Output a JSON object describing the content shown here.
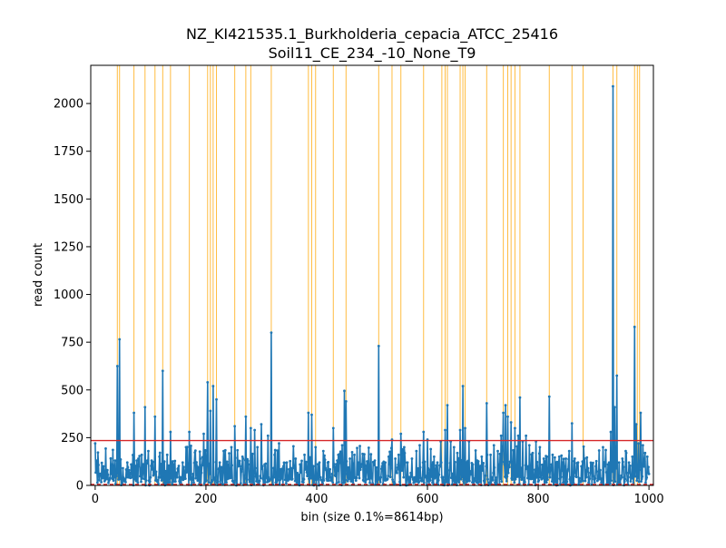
{
  "chart_data": {
    "type": "line",
    "title": "NZ_KI421535.1_Burkholderia_cepacia_ATCC_25416",
    "subtitle": "Soil11_CE_234_-10_None_T9",
    "xlabel": "bin (size 0.1%=8614bp)",
    "ylabel": "read count",
    "xlim": [
      -8,
      1008
    ],
    "ylim": [
      0,
      2200
    ],
    "x_ticks": [
      0,
      200,
      400,
      600,
      800,
      1000
    ],
    "y_ticks": [
      0,
      250,
      500,
      750,
      1000,
      1250,
      1500,
      1750,
      2000
    ],
    "grid": false,
    "colors": {
      "series": "#1f77b4",
      "threshold": "#d62728",
      "marker_lines": "#ffa500"
    },
    "threshold": 235,
    "lower_threshold": 5,
    "marker_lines_x": [
      40,
      44,
      70,
      90,
      108,
      122,
      136,
      170,
      203,
      208,
      213,
      219,
      252,
      272,
      281,
      318,
      385,
      391,
      398,
      430,
      453,
      512,
      536,
      552,
      593,
      626,
      632,
      636,
      659,
      664,
      668,
      707,
      737,
      745,
      751,
      758,
      767,
      820,
      861,
      881,
      935,
      942,
      974,
      979,
      983
    ],
    "series": [
      {
        "name": "",
        "peaks": [
          [
            0,
            220
          ],
          [
            8,
            60
          ],
          [
            15,
            100
          ],
          [
            22,
            80
          ],
          [
            30,
            110
          ],
          [
            36,
            130
          ],
          [
            40,
            625
          ],
          [
            44,
            765
          ],
          [
            50,
            90
          ],
          [
            58,
            120
          ],
          [
            65,
            110
          ],
          [
            70,
            380
          ],
          [
            78,
            140
          ],
          [
            84,
            160
          ],
          [
            90,
            410
          ],
          [
            96,
            180
          ],
          [
            102,
            130
          ],
          [
            108,
            360
          ],
          [
            116,
            150
          ],
          [
            122,
            600
          ],
          [
            130,
            160
          ],
          [
            136,
            280
          ],
          [
            143,
            100
          ],
          [
            150,
            90
          ],
          [
            158,
            120
          ],
          [
            164,
            200
          ],
          [
            170,
            280
          ],
          [
            177,
            60
          ],
          [
            184,
            100
          ],
          [
            190,
            140
          ],
          [
            196,
            270
          ],
          [
            203,
            540
          ],
          [
            208,
            390
          ],
          [
            213,
            520
          ],
          [
            219,
            450
          ],
          [
            225,
            120
          ],
          [
            232,
            180
          ],
          [
            240,
            110
          ],
          [
            246,
            200
          ],
          [
            252,
            310
          ],
          [
            258,
            100
          ],
          [
            266,
            150
          ],
          [
            272,
            360
          ],
          [
            281,
            300
          ],
          [
            288,
            290
          ],
          [
            293,
            200
          ],
          [
            300,
            320
          ],
          [
            306,
            110
          ],
          [
            312,
            260
          ],
          [
            318,
            800
          ],
          [
            324,
            160
          ],
          [
            332,
            220
          ],
          [
            340,
            100
          ],
          [
            346,
            120
          ],
          [
            354,
            90
          ],
          [
            362,
            140
          ],
          [
            370,
            110
          ],
          [
            378,
            160
          ],
          [
            385,
            380
          ],
          [
            391,
            370
          ],
          [
            398,
            200
          ],
          [
            405,
            120
          ],
          [
            412,
            180
          ],
          [
            420,
            120
          ],
          [
            430,
            300
          ],
          [
            437,
            130
          ],
          [
            444,
            120
          ],
          [
            450,
            495
          ],
          [
            453,
            440
          ],
          [
            460,
            140
          ],
          [
            468,
            160
          ],
          [
            475,
            120
          ],
          [
            482,
            110
          ],
          [
            490,
            100
          ],
          [
            497,
            90
          ],
          [
            505,
            130
          ],
          [
            512,
            730
          ],
          [
            518,
            100
          ],
          [
            524,
            120
          ],
          [
            530,
            150
          ],
          [
            536,
            240
          ],
          [
            542,
            140
          ],
          [
            548,
            160
          ],
          [
            552,
            270
          ],
          [
            558,
            200
          ],
          [
            564,
            120
          ],
          [
            572,
            140
          ],
          [
            580,
            180
          ],
          [
            586,
            210
          ],
          [
            593,
            280
          ],
          [
            600,
            240
          ],
          [
            606,
            190
          ],
          [
            612,
            150
          ],
          [
            618,
            120
          ],
          [
            624,
            230
          ],
          [
            632,
            290
          ],
          [
            636,
            420
          ],
          [
            642,
            230
          ],
          [
            648,
            200
          ],
          [
            654,
            170
          ],
          [
            659,
            290
          ],
          [
            664,
            520
          ],
          [
            668,
            300
          ],
          [
            675,
            230
          ],
          [
            682,
            110
          ],
          [
            690,
            130
          ],
          [
            698,
            150
          ],
          [
            707,
            430
          ],
          [
            714,
            160
          ],
          [
            720,
            210
          ],
          [
            727,
            180
          ],
          [
            733,
            260
          ],
          [
            737,
            380
          ],
          [
            741,
            420
          ],
          [
            745,
            360
          ],
          [
            751,
            330
          ],
          [
            758,
            300
          ],
          [
            764,
            260
          ],
          [
            767,
            460
          ],
          [
            772,
            230
          ],
          [
            778,
            260
          ],
          [
            784,
            210
          ],
          [
            790,
            170
          ],
          [
            796,
            230
          ],
          [
            803,
            200
          ],
          [
            810,
            140
          ],
          [
            816,
            150
          ],
          [
            820,
            465
          ],
          [
            826,
            160
          ],
          [
            832,
            120
          ],
          [
            838,
            150
          ],
          [
            844,
            120
          ],
          [
            850,
            140
          ],
          [
            856,
            180
          ],
          [
            861,
            325
          ],
          [
            866,
            140
          ],
          [
            872,
            120
          ],
          [
            878,
            100
          ],
          [
            884,
            140
          ],
          [
            890,
            90
          ],
          [
            896,
            110
          ],
          [
            904,
            100
          ],
          [
            912,
            80
          ],
          [
            920,
            100
          ],
          [
            928,
            120
          ],
          [
            931,
            280
          ],
          [
            935,
            2090
          ],
          [
            938,
            410
          ],
          [
            942,
            575
          ],
          [
            946,
            120
          ],
          [
            952,
            140
          ],
          [
            958,
            180
          ],
          [
            964,
            120
          ],
          [
            970,
            150
          ],
          [
            974,
            830
          ],
          [
            977,
            320
          ],
          [
            981,
            220
          ],
          [
            985,
            380
          ],
          [
            989,
            210
          ],
          [
            993,
            170
          ],
          [
            997,
            150
          ],
          [
            1000,
            60
          ]
        ]
      }
    ]
  }
}
